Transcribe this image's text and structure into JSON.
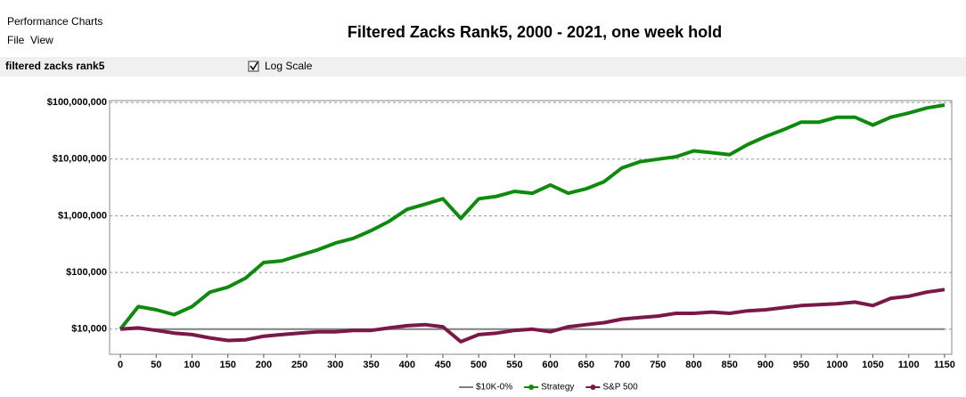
{
  "window": {
    "title": "Performance Charts",
    "menu": [
      "File",
      "View"
    ],
    "toolbar_label": "filtered zacks rank5",
    "log_scale_label": "Log Scale"
  },
  "chart_data": {
    "type": "line",
    "title": "Filtered Zacks Rank5, 2000 - 2021, one week hold",
    "log_scale": true,
    "grid": true,
    "legend": "bottom",
    "x": [
      0,
      25,
      50,
      75,
      100,
      125,
      150,
      175,
      200,
      225,
      250,
      275,
      300,
      325,
      350,
      375,
      400,
      425,
      450,
      475,
      500,
      525,
      550,
      575,
      600,
      625,
      650,
      675,
      700,
      725,
      750,
      775,
      800,
      825,
      850,
      875,
      900,
      925,
      950,
      975,
      1000,
      1025,
      1050,
      1075,
      1100,
      1125,
      1150
    ],
    "series": [
      {
        "name": "$10K-0%",
        "color": "#808080",
        "values": [
          10000,
          10000,
          10000,
          10000,
          10000,
          10000,
          10000,
          10000,
          10000,
          10000,
          10000,
          10000,
          10000,
          10000,
          10000,
          10000,
          10000,
          10000,
          10000,
          10000,
          10000,
          10000,
          10000,
          10000,
          10000,
          10000,
          10000,
          10000,
          10000,
          10000,
          10000,
          10000,
          10000,
          10000,
          10000,
          10000,
          10000,
          10000,
          10000,
          10000,
          10000,
          10000,
          10000,
          10000,
          10000,
          10000,
          10000
        ]
      },
      {
        "name": "Strategy",
        "color": "#0f8a0f",
        "values": [
          10000,
          25000,
          22000,
          18000,
          25000,
          45000,
          55000,
          80000,
          150000,
          160000,
          200000,
          250000,
          330000,
          400000,
          550000,
          800000,
          1300000,
          1600000,
          2000000,
          900000,
          2000000,
          2200000,
          2700000,
          2500000,
          3500000,
          2500000,
          3000000,
          4000000,
          7000000,
          9000000,
          10000000,
          11000000,
          14000000,
          13000000,
          12000000,
          18000000,
          25000000,
          33000000,
          45000000,
          45000000,
          55000000,
          55000000,
          40000000,
          55000000,
          65000000,
          80000000,
          90000000
        ]
      },
      {
        "name": "S&P 500",
        "color": "#7a1848",
        "values": [
          10000,
          10500,
          9500,
          8500,
          8000,
          7000,
          6300,
          6500,
          7500,
          8000,
          8500,
          9000,
          9000,
          9500,
          9500,
          10500,
          11500,
          12000,
          11000,
          6000,
          8000,
          8500,
          9500,
          10000,
          9000,
          11000,
          12000,
          13000,
          15000,
          16000,
          17000,
          19000,
          19000,
          20000,
          19000,
          21000,
          22000,
          24000,
          26000,
          27000,
          28000,
          30000,
          26000,
          35000,
          38000,
          45000,
          50000
        ]
      }
    ],
    "xlim": [
      -15,
      1160
    ],
    "xticks": [
      0,
      50,
      100,
      150,
      200,
      250,
      300,
      350,
      400,
      450,
      500,
      550,
      600,
      650,
      700,
      750,
      800,
      850,
      900,
      950,
      1000,
      1050,
      1100,
      1150
    ],
    "ylim": [
      3600,
      108000000
    ],
    "yticks": [
      {
        "value": 10000,
        "label": "$10,000"
      },
      {
        "value": 100000,
        "label": "$100,000"
      },
      {
        "value": 1000000,
        "label": "$1,000,000"
      },
      {
        "value": 10000000,
        "label": "$10,000,000"
      },
      {
        "value": 100000000,
        "label": "$100,000,000"
      }
    ]
  }
}
